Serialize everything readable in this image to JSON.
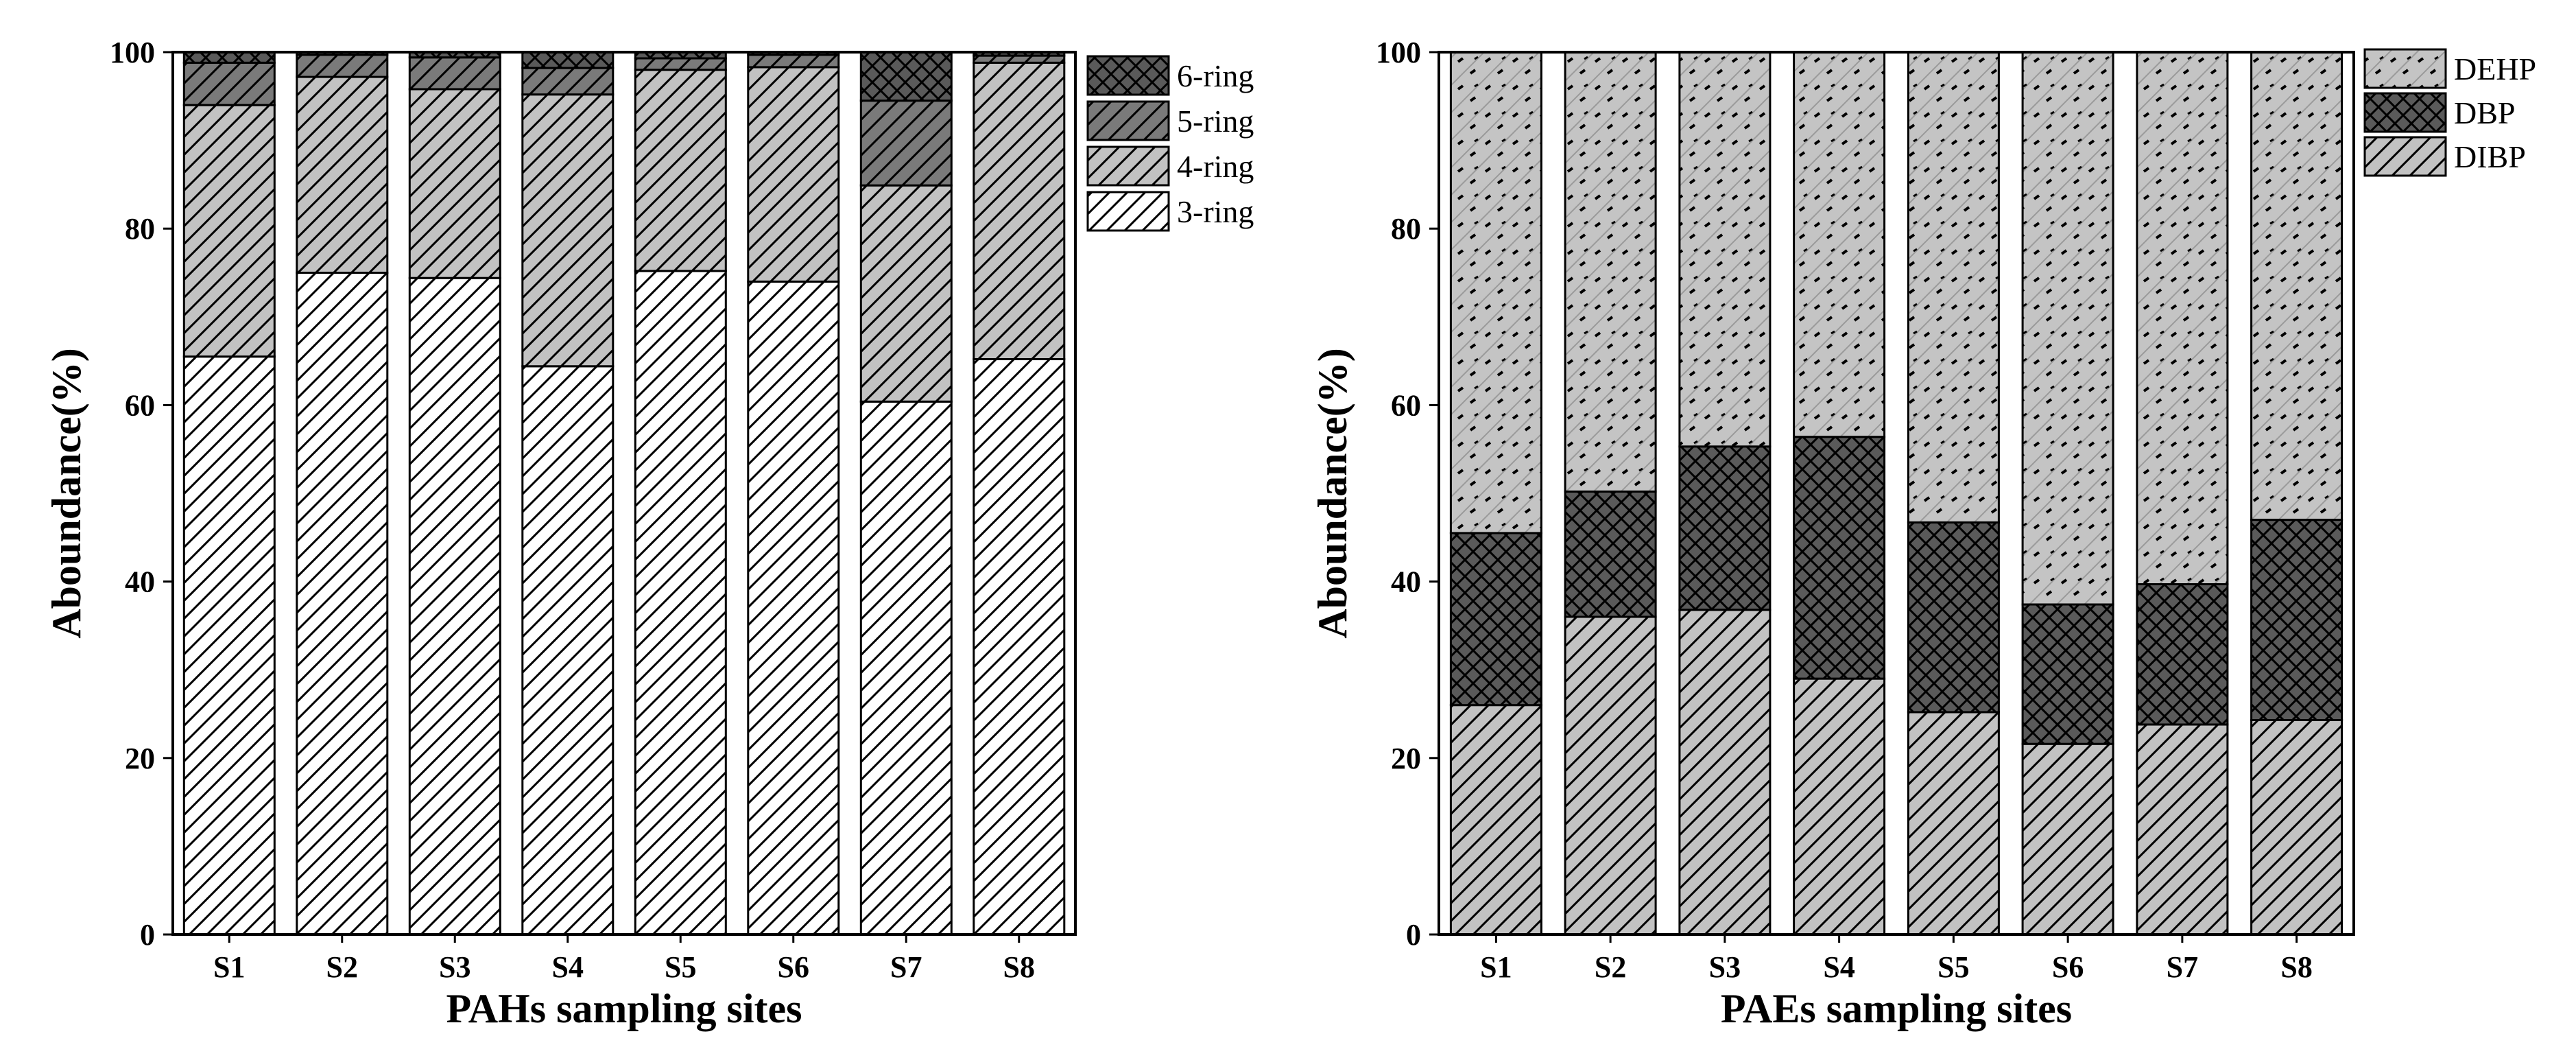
{
  "chart_data": [
    {
      "type": "stacked-bar",
      "title": "",
      "xlabel": "PAHs sampling sites",
      "ylabel": "Aboundance(%)",
      "ylim": [
        0,
        100
      ],
      "yticks": [
        0,
        20,
        40,
        60,
        80,
        100
      ],
      "categories": [
        "S1",
        "S2",
        "S3",
        "S4",
        "S5",
        "S6",
        "S7",
        "S8"
      ],
      "series": [
        {
          "name": "3-ring",
          "pattern": "hatch-light",
          "values": [
            65.5,
            75.0,
            74.4,
            64.4,
            75.2,
            74.0,
            60.4,
            65.2
          ]
        },
        {
          "name": "4-ring",
          "pattern": "hatch-grey",
          "values": [
            28.5,
            22.2,
            21.4,
            30.8,
            22.8,
            24.3,
            24.5,
            33.6
          ]
        },
        {
          "name": "5-ring",
          "pattern": "hatch-dark",
          "values": [
            4.8,
            2.5,
            3.6,
            3.0,
            1.3,
            1.4,
            9.6,
            0.8
          ]
        },
        {
          "name": "6-ring",
          "pattern": "cross-dark",
          "values": [
            1.2,
            0.3,
            0.6,
            1.8,
            0.7,
            0.3,
            5.5,
            0.4
          ]
        }
      ],
      "legend_order": [
        "6-ring",
        "5-ring",
        "4-ring",
        "3-ring"
      ],
      "legend_position": "top-right, outside"
    },
    {
      "type": "stacked-bar",
      "title": "",
      "xlabel": "PAEs sampling sites",
      "ylabel": "Aboundance(%)",
      "ylim": [
        0,
        100
      ],
      "yticks": [
        0,
        20,
        40,
        60,
        80,
        100
      ],
      "categories": [
        "S1",
        "S2",
        "S3",
        "S4",
        "S5",
        "S6",
        "S7",
        "S8"
      ],
      "series": [
        {
          "name": "DIBP",
          "pattern": "hatch-grey",
          "values": [
            26.0,
            36.0,
            36.8,
            29.0,
            25.2,
            21.6,
            23.8,
            24.3
          ]
        },
        {
          "name": "DBP",
          "pattern": "cross-dark",
          "values": [
            19.5,
            14.2,
            18.5,
            27.4,
            21.5,
            15.8,
            15.9,
            22.7
          ]
        },
        {
          "name": "DEHP",
          "pattern": "dots-grey",
          "values": [
            54.5,
            49.8,
            44.7,
            43.6,
            53.3,
            62.6,
            60.3,
            53.0
          ]
        }
      ],
      "legend_order": [
        "DEHP",
        "DBP",
        "DIBP"
      ],
      "legend_position": "top-right, outside"
    }
  ]
}
